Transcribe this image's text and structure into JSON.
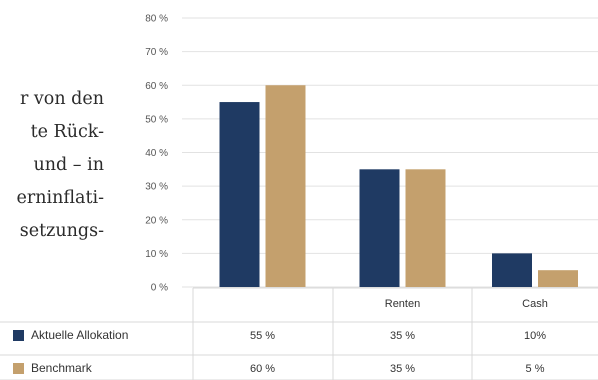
{
  "body_text": {
    "lines": [
      "r von den",
      "te  Rück-",
      "und – in",
      "erninflati-",
      "setzungs-"
    ]
  },
  "colors": {
    "series1": "#1f3a63",
    "series2": "#c4a06d",
    "grid": "#e2e2e2",
    "table_line": "#d8d8d8"
  },
  "chart_data": {
    "type": "bar",
    "categories": [
      "",
      "Renten",
      "Cash"
    ],
    "series": [
      {
        "name": "Aktuelle Allokation",
        "values": [
          55,
          35,
          10
        ],
        "labels": [
          "55 %",
          "35 %",
          "10%"
        ]
      },
      {
        "name": "Benchmark",
        "values": [
          60,
          35,
          5
        ],
        "labels": [
          "60 %",
          "35 %",
          "5 %"
        ]
      }
    ],
    "y_ticks": [
      "0 %",
      "10 %",
      "20 %",
      "30 %",
      "40 %",
      "50 %",
      "60 %",
      "70 %",
      "80 %"
    ],
    "ylim": [
      0,
      80
    ],
    "grid": true,
    "legend": "data-table-left"
  }
}
